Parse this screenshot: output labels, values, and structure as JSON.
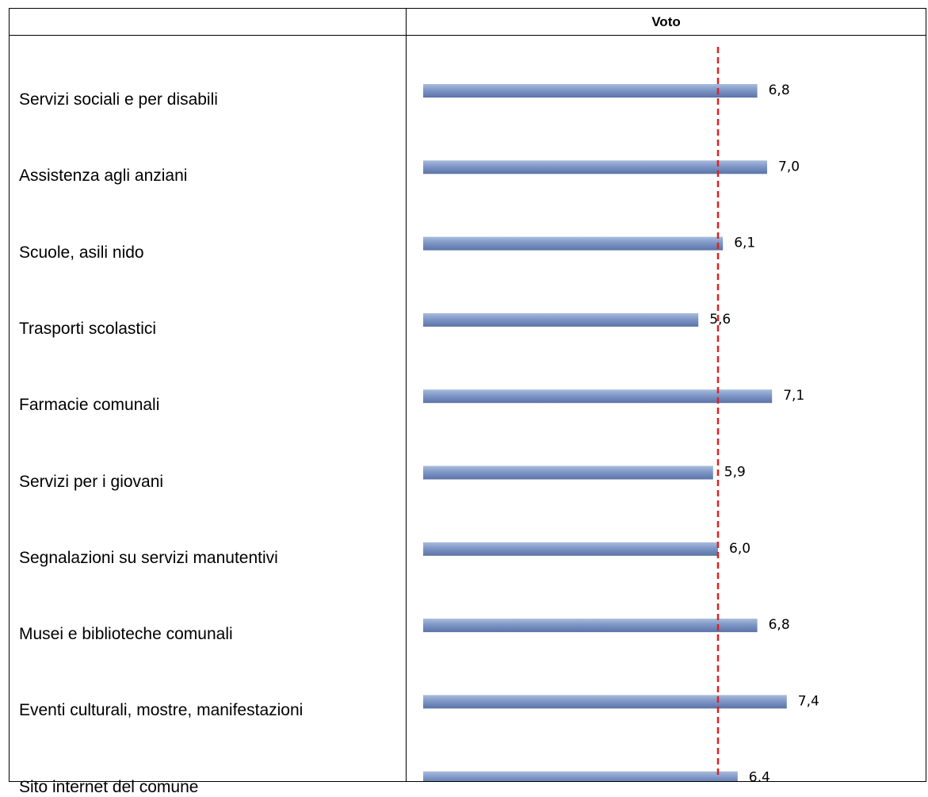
{
  "header": {
    "value_column_title": "Voto"
  },
  "chart_data": {
    "type": "bar",
    "orientation": "horizontal",
    "categories": [
      "Servizi sociali e per disabili",
      "Assistenza agli anziani",
      "Scuole, asili nido",
      "Trasporti scolastici",
      "Farmacie comunali",
      "Servizi per i giovani",
      "Segnalazioni su servizi manutentivi",
      "Musei e biblioteche comunali",
      "Eventi culturali, mostre, manifestazioni",
      "Sito internet del comune"
    ],
    "values": [
      6.8,
      7.0,
      6.1,
      5.6,
      7.1,
      5.9,
      6.0,
      6.8,
      7.4,
      6.4
    ],
    "value_labels": [
      "6,8",
      "7,0",
      "6,1",
      "5,6",
      "7,1",
      "5,9",
      "6,0",
      "6,8",
      "7,4",
      "6,4"
    ],
    "reference_line": {
      "value": 6.0,
      "style": "dashed",
      "color": "#e02020"
    },
    "xlim": [
      0,
      10
    ],
    "grid": false,
    "legend": "none",
    "bar_color": "#7f97c7",
    "bar_color_light": "#a9bcdc",
    "bar_color_dark": "#5b73a6"
  }
}
